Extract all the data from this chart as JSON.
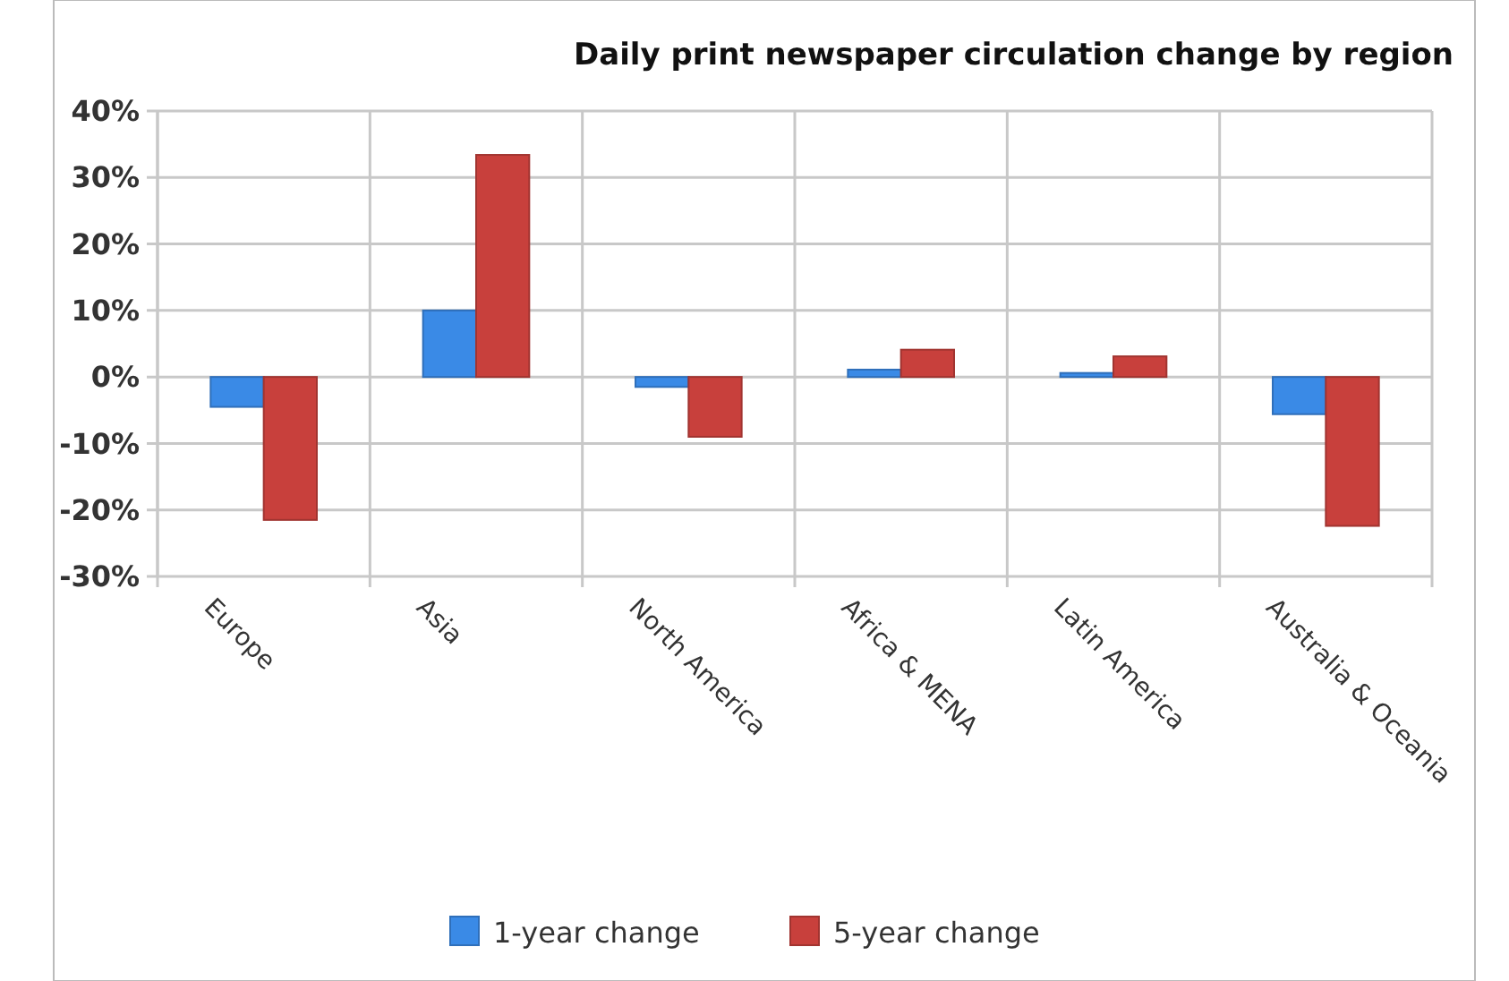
{
  "chart_data": {
    "type": "bar",
    "title": "Daily print newspaper circulation change by region",
    "categories": [
      "Europe",
      "Asia",
      "North America",
      "Africa & MENA",
      "Latin America",
      "Australia & Oceania"
    ],
    "series": [
      {
        "name": "1-year change",
        "color": "#3a8ae6",
        "values": [
          -4.5,
          10,
          -1.5,
          1.1,
          0.6,
          -5.6
        ]
      },
      {
        "name": "5-year change",
        "color": "#c8403c",
        "values": [
          -21.5,
          33.4,
          -9,
          4.1,
          3.1,
          -22.4
        ]
      }
    ],
    "ylim": [
      -30,
      40
    ],
    "yticks": [
      {
        "value": -30,
        "label": "-30%"
      },
      {
        "value": -20,
        "label": "-20%"
      },
      {
        "value": -10,
        "label": "-10%"
      },
      {
        "value": 0,
        "label": "0%"
      },
      {
        "value": 10,
        "label": "10%"
      },
      {
        "value": 20,
        "label": "20%"
      },
      {
        "value": 30,
        "label": "30%"
      },
      {
        "value": 40,
        "label": "40%"
      }
    ],
    "grid": true,
    "legend": "bottom"
  }
}
